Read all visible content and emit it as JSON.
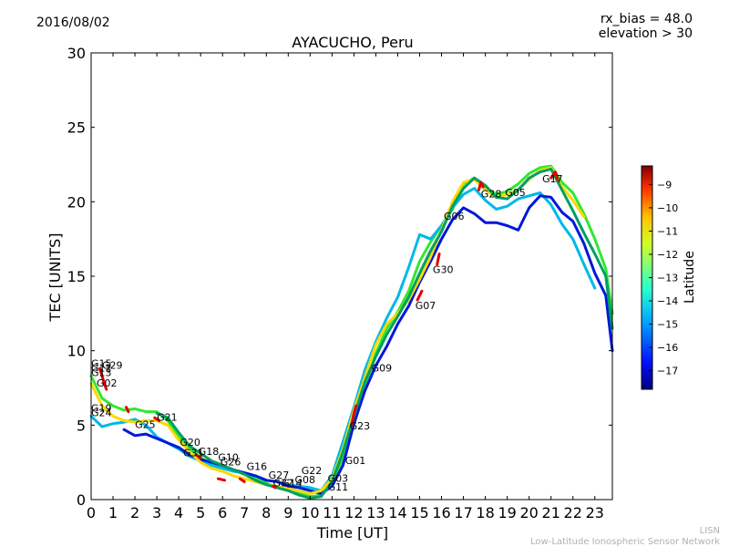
{
  "header": {
    "date": "2016/08/02",
    "rx_bias": "rx_bias = 48.0",
    "elevation": "elevation > 30"
  },
  "footer": {
    "line1": "LISN",
    "line2": "Low-Latitude Ionospheric Sensor Network"
  },
  "chart_data": {
    "type": "scatter",
    "title": "AYACUCHO, Peru",
    "xlabel": "Time [UT]",
    "ylabel": "TEC [UNITS]",
    "xlim": [
      0,
      23.8
    ],
    "ylim": [
      0,
      30
    ],
    "xticks": [
      "0",
      "1",
      "2",
      "3",
      "4",
      "5",
      "6",
      "7",
      "8",
      "9",
      "10",
      "11",
      "12",
      "13",
      "14",
      "15",
      "16",
      "17",
      "18",
      "19",
      "20",
      "21",
      "22",
      "23"
    ],
    "yticks": [
      "0",
      "5",
      "10",
      "15",
      "20",
      "25",
      "30"
    ],
    "colorbar": {
      "label": "Latitude",
      "range": [
        -17.8,
        -8.2
      ],
      "ticks": [
        "-9",
        "-10",
        "-11",
        "-12",
        "-13",
        "-14",
        "-15",
        "-16",
        "-17"
      ],
      "colors": [
        "#00007f",
        "#0010ff",
        "#00a4ff",
        "#29ffce",
        "#7dff7a",
        "#ceff29",
        "#ffc400",
        "#ff3000",
        "#7f0000"
      ]
    },
    "satellite_labels": [
      {
        "name": "G15",
        "x": 0.0,
        "y": 8.9
      },
      {
        "name": "G29",
        "x": 0.5,
        "y": 8.8
      },
      {
        "name": "G12",
        "x": 0.0,
        "y": 8.6
      },
      {
        "name": "G13",
        "x": 0.0,
        "y": 8.3
      },
      {
        "name": "G02",
        "x": 0.25,
        "y": 7.6
      },
      {
        "name": "G19",
        "x": 0.0,
        "y": 5.9
      },
      {
        "name": "G24",
        "x": 0.0,
        "y": 5.6
      },
      {
        "name": "G25",
        "x": 2.0,
        "y": 4.8
      },
      {
        "name": "G21",
        "x": 3.0,
        "y": 5.3
      },
      {
        "name": "G20",
        "x": 4.05,
        "y": 3.6
      },
      {
        "name": "G31",
        "x": 4.2,
        "y": 2.9
      },
      {
        "name": "G18",
        "x": 4.9,
        "y": 3.0
      },
      {
        "name": "G10",
        "x": 5.8,
        "y": 2.6
      },
      {
        "name": "G26",
        "x": 5.9,
        "y": 2.3
      },
      {
        "name": "G16",
        "x": 7.1,
        "y": 2.0
      },
      {
        "name": "G27",
        "x": 8.1,
        "y": 1.4
      },
      {
        "name": "G32",
        "x": 8.3,
        "y": 0.9
      },
      {
        "name": "G14",
        "x": 8.7,
        "y": 0.9
      },
      {
        "name": "G08",
        "x": 9.3,
        "y": 1.1
      },
      {
        "name": "G22",
        "x": 9.6,
        "y": 1.7
      },
      {
        "name": "G03",
        "x": 10.8,
        "y": 1.2
      },
      {
        "name": "G11",
        "x": 10.8,
        "y": 0.6
      },
      {
        "name": "G01",
        "x": 11.6,
        "y": 2.4
      },
      {
        "name": "G23",
        "x": 11.8,
        "y": 4.7
      },
      {
        "name": "G09",
        "x": 12.8,
        "y": 8.6
      },
      {
        "name": "G07",
        "x": 14.8,
        "y": 12.8
      },
      {
        "name": "G30",
        "x": 15.6,
        "y": 15.2
      },
      {
        "name": "G06",
        "x": 16.1,
        "y": 18.8
      },
      {
        "name": "G28",
        "x": 17.8,
        "y": 20.3
      },
      {
        "name": "G05",
        "x": 18.9,
        "y": 20.4
      },
      {
        "name": "G17",
        "x": 20.6,
        "y": 21.3
      }
    ],
    "series": [
      {
        "color": "#30e830",
        "x": [
          0,
          0.5,
          1,
          1.5,
          2,
          2.5,
          3,
          3.5,
          4,
          4.5,
          5,
          5.5,
          6,
          6.5,
          7,
          7.5,
          8,
          8.5,
          9,
          9.5,
          10,
          10.5,
          11,
          11.5,
          12,
          12.5,
          13,
          13.5,
          14,
          14.5,
          15,
          15.5,
          16,
          16.5,
          17,
          17.5,
          18,
          18.5,
          19,
          19.5,
          20,
          20.5,
          21,
          21.5,
          22,
          22.5,
          23,
          23.5,
          23.8
        ],
        "y": [
          8.3,
          6.8,
          6.3,
          6.0,
          6.1,
          5.9,
          5.9,
          5.3,
          4.2,
          3.4,
          2.8,
          2.4,
          2.2,
          2.0,
          1.7,
          1.4,
          1.1,
          0.8,
          0.6,
          0.4,
          0.2,
          0.3,
          1.0,
          2.8,
          5.0,
          7.5,
          9.8,
          11.5,
          12.6,
          14.0,
          16.0,
          17.3,
          18.4,
          19.5,
          21.2,
          21.6,
          20.9,
          20.5,
          20.7,
          21.2,
          21.9,
          22.3,
          22.4,
          21.3,
          20.6,
          19.2,
          17.5,
          15.5,
          12.5
        ]
      },
      {
        "color": "#00b8e8",
        "x": [
          0,
          0.5,
          1,
          1.5,
          2,
          2.5,
          3,
          3.5,
          4,
          4.5,
          5,
          5.5,
          6,
          6.5,
          7,
          7.5,
          8,
          8.5,
          9,
          9.5,
          10,
          10.5,
          11,
          11.5,
          12,
          12.5,
          13,
          13.5,
          14,
          14.5,
          15,
          15.5,
          16,
          16.5,
          17,
          17.5,
          18,
          18.5,
          19,
          19.5,
          20,
          20.5,
          21,
          21.5,
          22,
          22.5,
          23
        ],
        "y": [
          5.6,
          4.9,
          5.1,
          5.2,
          5.4,
          5.0,
          4.2,
          3.8,
          3.4,
          2.9,
          2.6,
          2.3,
          2.1,
          1.9,
          1.8,
          1.6,
          1.3,
          1.2,
          1.0,
          0.9,
          0.8,
          0.6,
          1.6,
          3.9,
          6.2,
          8.7,
          10.6,
          12.2,
          13.6,
          15.6,
          17.8,
          17.5,
          18.4,
          19.6,
          20.5,
          20.9,
          20.1,
          19.5,
          19.7,
          20.2,
          20.4,
          20.6,
          19.8,
          18.5,
          17.5,
          15.8,
          14.2
        ]
      },
      {
        "color": "#0018d8",
        "x": [
          1.5,
          2,
          2.5,
          3,
          3.5,
          4,
          4.5,
          5,
          5.5,
          6,
          6.5,
          7,
          7.5,
          8,
          8.5,
          9,
          9.5,
          10,
          10.5,
          11,
          11.5,
          12,
          12.5,
          13,
          13.5,
          14,
          14.5,
          15,
          15.5,
          16,
          16.5,
          17,
          17.5,
          18,
          18.5,
          19,
          19.5,
          20,
          20.5,
          21,
          21.5,
          22,
          22.5,
          23,
          23.5,
          23.8
        ],
        "y": [
          4.7,
          4.3,
          4.4,
          4.1,
          3.8,
          3.5,
          3.0,
          2.7,
          2.5,
          2.3,
          2.0,
          1.8,
          1.6,
          1.3,
          1.2,
          0.9,
          0.8,
          0.6,
          0.4,
          0.9,
          2.3,
          5.1,
          7.3,
          9.0,
          10.3,
          11.8,
          13.0,
          14.6,
          16.0,
          17.5,
          18.8,
          19.6,
          19.2,
          18.6,
          18.6,
          18.4,
          18.1,
          19.6,
          20.4,
          20.3,
          19.3,
          18.7,
          17.2,
          15.2,
          13.7,
          10.0
        ]
      },
      {
        "color": "#ffd800",
        "x": [
          0,
          0.5,
          1,
          1.5,
          2,
          2.5,
          3,
          3.5,
          4,
          4.5,
          5,
          5.5,
          6,
          6.5,
          7,
          7.5,
          8,
          8.5,
          9,
          9.5,
          10,
          10.5,
          11,
          11.5,
          12,
          12.5,
          13,
          13.5,
          14,
          14.5,
          15,
          15.5,
          16,
          16.5,
          17,
          17.5,
          18,
          18.5,
          19,
          19.5,
          20,
          20.5,
          21,
          21.5,
          22,
          22.5
        ],
        "y": [
          7.8,
          6.3,
          5.6,
          5.3,
          5.2,
          5.3,
          5.3,
          5.0,
          4.0,
          3.2,
          2.5,
          2.1,
          1.9,
          1.6,
          1.4,
          1.2,
          1.0,
          0.9,
          0.7,
          0.6,
          0.4,
          0.6,
          1.4,
          3.4,
          6.0,
          8.2,
          10.4,
          11.8,
          12.5,
          13.4,
          14.8,
          16.3,
          18.1,
          20.0,
          21.3,
          21.5,
          20.8,
          20.3,
          20.5,
          20.8,
          21.5,
          22.1,
          22.3,
          21.0,
          20.1,
          19.0
        ]
      },
      {
        "color": "#00a060",
        "x": [
          3,
          3.5,
          4,
          4.5,
          5,
          5.5,
          6,
          6.5,
          7,
          7.5,
          8,
          8.5,
          9,
          9.5,
          10,
          10.5,
          11,
          11.5,
          12,
          12.5,
          13,
          13.5,
          14,
          14.5,
          15,
          15.5,
          16,
          16.5,
          17,
          17.5,
          18,
          18.5,
          19,
          19.5,
          20,
          20.5,
          21,
          21.5,
          22,
          22.5,
          23,
          23.5,
          23.8
        ],
        "y": [
          5.8,
          5.5,
          4.5,
          3.6,
          3.1,
          2.6,
          2.3,
          2.0,
          1.7,
          1.3,
          1.0,
          0.8,
          0.6,
          0.3,
          0.1,
          0.2,
          1.2,
          3.2,
          5.6,
          7.9,
          9.6,
          11.1,
          12.3,
          13.6,
          15.2,
          16.7,
          18.0,
          19.7,
          20.9,
          21.6,
          21.1,
          20.3,
          20.2,
          20.8,
          21.6,
          22.0,
          22.2,
          20.8,
          19.4,
          17.9,
          16.5,
          15.0,
          11.5
        ]
      },
      {
        "color": "#e00000",
        "x": [
          0.4,
          0.5,
          0.6,
          0.7,
          1.6,
          1.7,
          2.9,
          3.1,
          4.8,
          5.0,
          5.8,
          6.1,
          6.8,
          7.0,
          8.3,
          8.4,
          11.9,
          12.0,
          12.1,
          14.9,
          15.1,
          15.8,
          15.9,
          17.7,
          17.8,
          17.9,
          21.0,
          21.2,
          21.3
        ],
        "y": [
          8.8,
          8.3,
          7.8,
          7.4,
          6.2,
          5.9,
          5.5,
          5.3,
          3.0,
          2.8,
          1.4,
          1.3,
          1.4,
          1.2,
          0.9,
          0.8,
          5.0,
          5.8,
          6.3,
          13.4,
          14.0,
          15.8,
          16.5,
          20.8,
          21.3,
          21.0,
          21.6,
          22.0,
          21.5
        ]
      }
    ]
  }
}
